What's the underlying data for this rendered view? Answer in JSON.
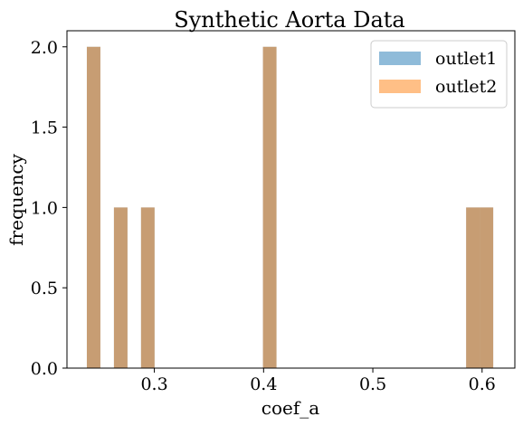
{
  "chart_data": {
    "type": "bar",
    "subtype": "histogram",
    "title": "Synthetic Aorta Data",
    "xlabel": "coef_a",
    "ylabel": "frequency",
    "xlim": [
      0.22,
      0.63
    ],
    "ylim": [
      0,
      2.1
    ],
    "xticks": [
      0.3,
      0.4,
      0.5,
      0.6
    ],
    "xtick_labels": [
      "0.3",
      "0.4",
      "0.5",
      "0.6"
    ],
    "yticks": [
      0.0,
      0.5,
      1.0,
      1.5,
      2.0
    ],
    "ytick_labels": [
      "0.0",
      "0.5",
      "1.0",
      "1.5",
      "2.0"
    ],
    "grid": false,
    "legend_position": "top-right",
    "bin_width": 0.0124,
    "series": [
      {
        "name": "outlet1",
        "color": "#1f77b4",
        "opacity": 0.5,
        "bins": [
          {
            "x": 0.2382,
            "count": 2
          },
          {
            "x": 0.263,
            "count": 1
          },
          {
            "x": 0.2754,
            "count": 0
          },
          {
            "x": 0.2878,
            "count": 1
          },
          {
            "x": 0.3994,
            "count": 2
          },
          {
            "x": 0.5854,
            "count": 1
          },
          {
            "x": 0.5978,
            "count": 1
          }
        ]
      },
      {
        "name": "outlet2",
        "color": "#ff7f0e",
        "opacity": 0.5,
        "bins": [
          {
            "x": 0.2382,
            "count": 2
          },
          {
            "x": 0.263,
            "count": 1
          },
          {
            "x": 0.2754,
            "count": 0
          },
          {
            "x": 0.2878,
            "count": 1
          },
          {
            "x": 0.3994,
            "count": 2
          },
          {
            "x": 0.5854,
            "count": 1
          },
          {
            "x": 0.5978,
            "count": 1
          }
        ]
      }
    ]
  }
}
